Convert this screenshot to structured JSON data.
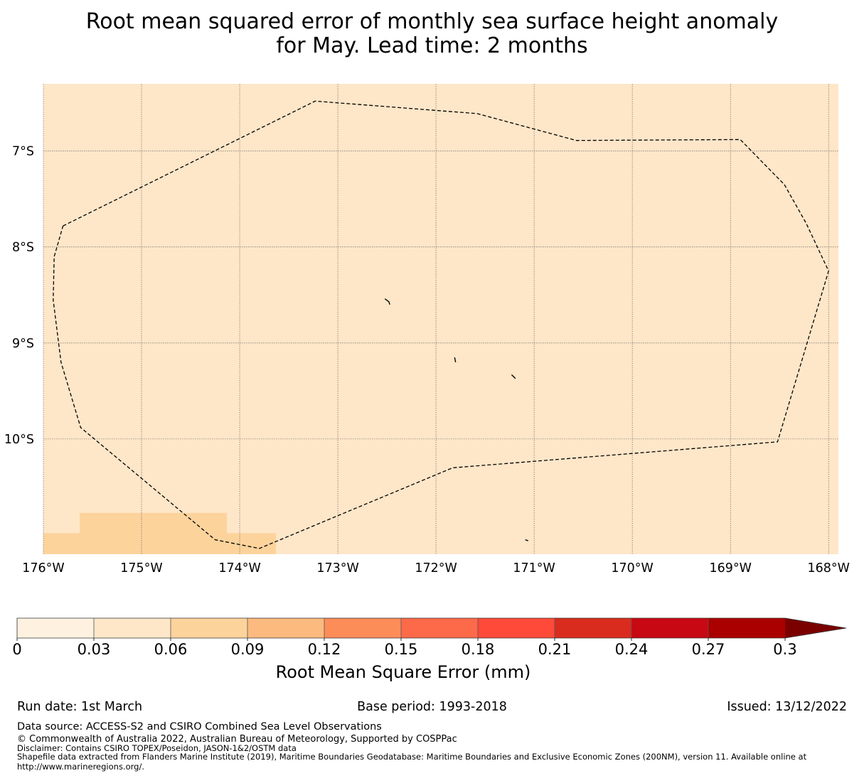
{
  "title": {
    "line1": "Root mean squared error of monthly sea surface height anomaly",
    "line2": "for May. Lead time: 2 months"
  },
  "map": {
    "lon_range": [
      -176,
      -167.9
    ],
    "lat_range": [
      -11.2,
      -6.3
    ],
    "lat_ticks": [
      {
        "value": -7,
        "label": "7°S"
      },
      {
        "value": -8,
        "label": "8°S"
      },
      {
        "value": -9,
        "label": "9°S"
      },
      {
        "value": -10,
        "label": "10°S"
      }
    ],
    "lon_ticks": [
      {
        "value": -176,
        "label": "176°W"
      },
      {
        "value": -175,
        "label": "175°W"
      },
      {
        "value": -174,
        "label": "174°W"
      },
      {
        "value": -173,
        "label": "173°W"
      },
      {
        "value": -172,
        "label": "172°W"
      },
      {
        "value": -171,
        "label": "171°W"
      },
      {
        "value": -170,
        "label": "170°W"
      },
      {
        "value": -169,
        "label": "169°W"
      },
      {
        "value": -168,
        "label": "168°W"
      }
    ],
    "background_color": "#fee6c8",
    "higher_error_color": "#fdd39c",
    "higher_error_cells": [
      {
        "lon": [
          -175.63,
          -174.13
        ],
        "lat": [
          -11.2,
          -10.77
        ]
      },
      {
        "lon": [
          -176.0,
          -175.63
        ],
        "lat": [
          -11.2,
          -10.98
        ]
      },
      {
        "lon": [
          -174.13,
          -173.63
        ],
        "lat": [
          -11.2,
          -10.98
        ]
      }
    ],
    "eez_boundary": [
      [
        -175.8,
        -7.78
      ],
      [
        -173.23,
        -6.48
      ],
      [
        -171.58,
        -6.61
      ],
      [
        -170.57,
        -6.89
      ],
      [
        -168.9,
        -6.88
      ],
      [
        -168.45,
        -7.35
      ],
      [
        -168.23,
        -7.75
      ],
      [
        -168.0,
        -8.25
      ],
      [
        -168.52,
        -10.03
      ],
      [
        -171.83,
        -10.3
      ],
      [
        -173.8,
        -11.14
      ],
      [
        -174.25,
        -11.05
      ],
      [
        -175.62,
        -9.88
      ],
      [
        -175.82,
        -9.2
      ],
      [
        -175.9,
        -8.55
      ],
      [
        -175.89,
        -8.1
      ],
      [
        -175.8,
        -7.78
      ]
    ],
    "islands": [
      [
        [
          -172.52,
          -8.54
        ],
        [
          -172.48,
          -8.57
        ],
        [
          -172.47,
          -8.6
        ]
      ],
      [
        [
          -171.81,
          -9.15
        ],
        [
          -171.8,
          -9.2
        ]
      ],
      [
        [
          -171.23,
          -9.33
        ],
        [
          -171.19,
          -9.37
        ]
      ],
      [
        [
          -171.09,
          -11.05
        ],
        [
          -171.06,
          -11.06
        ]
      ]
    ]
  },
  "colorbar": {
    "boundaries": [
      0,
      0.03,
      0.06,
      0.09,
      0.12,
      0.15,
      0.18,
      0.21,
      0.24,
      0.27,
      0.3
    ],
    "tick_labels": [
      "0",
      "0.03",
      "0.06",
      "0.09",
      "0.12",
      "0.15",
      "0.18",
      "0.21",
      "0.24",
      "0.27",
      "0.3"
    ],
    "colors": [
      "#fff1e0",
      "#fee6c8",
      "#fdd39c",
      "#fdba7f",
      "#fc8d59",
      "#fd6a4a",
      "#ff4a3a",
      "#d92c1f",
      "#c80812",
      "#ab0000"
    ],
    "extend_color": "#7a0000",
    "label": "Root Mean Square Error (mm)"
  },
  "footer": {
    "run_date": "Run date: 1st March",
    "base_period": "Base period: 1993-2018",
    "issued": "Issued: 13/12/2022",
    "data_source": "Data source: ACCESS-S2 and CSIRO Combined Sea Level Observations",
    "copyright": "© Commonwealth of Australia 2022, Australian Bureau of Meteorology, Supported by COSPPac",
    "disclaimer": "Disclaimer: Contains CSIRO TOPEX/Poseidon, JASON-1&2/OSTM data",
    "shapefile_line1": "Shapefile data extracted from Flanders Marine Institute (2019), Maritime Boundaries Geodatabase: Maritime Boundaries and Exclusive Economic Zones (200NM), version 11. Available online at",
    "shapefile_line2": "http://www.marineregions.org/."
  }
}
